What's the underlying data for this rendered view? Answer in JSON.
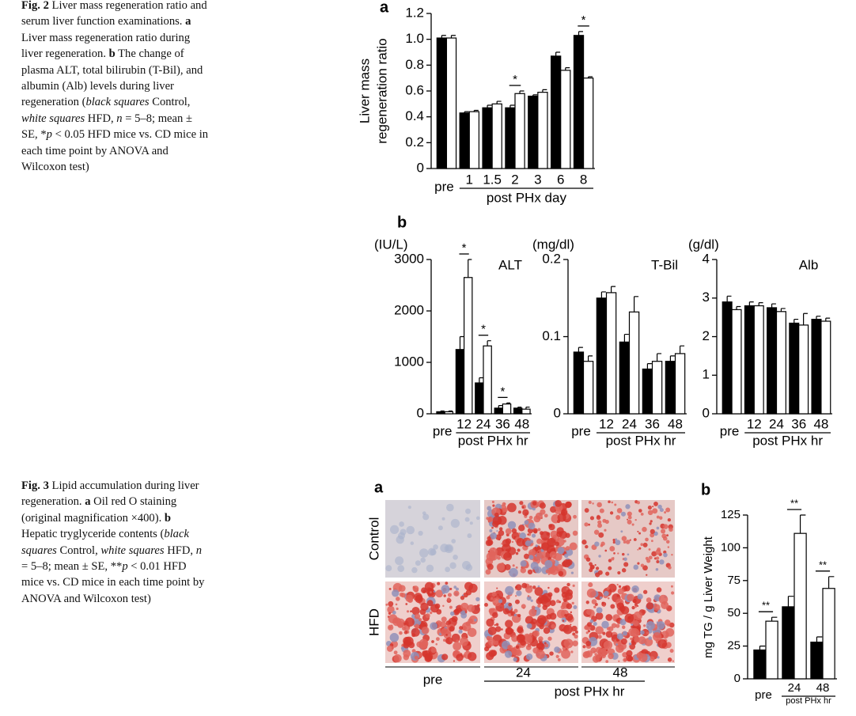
{
  "captions": [
    {
      "runs": [
        "Fig. 2",
        " Liver mass regeneration ratio and serum liver function examinations. ",
        "a",
        " Liver mass regeneration ratio during liver regeneration. ",
        "b",
        " The change of plasma ALT, total bilirubin (T-Bil), and albumin (Alb) levels during liver regeneration (",
        "black squares",
        " Control, ",
        "white squares",
        " HFD, ",
        "n",
        " = 5–8; mean ± SE, *",
        "p",
        " < 0.05 HFD mice vs. CD mice in each time point by ANOVA and Wilcoxon test)"
      ]
    },
    {
      "runs": [
        "Fig. 3",
        " Lipid accumulation during liver regeneration. ",
        "a",
        " Oil red O staining (original magnification ×400). ",
        "b",
        " Hepatic tryglyceride contents (",
        "black squares",
        " Control, ",
        "white squares",
        " HFD, ",
        "n",
        " = 5–8; mean ± SE, **",
        "p",
        " < 0.01 HFD mice vs. CD mice in each time point by ANOVA and Wilcoxon test)"
      ]
    }
  ],
  "chart_data": [
    {
      "type": "bar",
      "panel": "a",
      "y_label": [
        "Liver mass",
        "regeneration ratio"
      ],
      "x_label": "post PHx day",
      "categories": [
        "pre",
        "1",
        "1.5",
        "2",
        "3",
        "6",
        "8"
      ],
      "series": [
        {
          "color": "#000000",
          "values": [
            1.01,
            0.43,
            0.47,
            0.47,
            0.56,
            0.87,
            1.03
          ],
          "errors": [
            0.02,
            0.01,
            0.02,
            0.02,
            0.01,
            0.03,
            0.03
          ]
        },
        {
          "color": "#ffffff",
          "values": [
            1.01,
            0.44,
            0.5,
            0.58,
            0.59,
            0.76,
            0.7
          ],
          "errors": [
            0.02,
            0.01,
            0.02,
            0.02,
            0.02,
            0.02,
            0.01
          ]
        }
      ],
      "significance": [
        null,
        null,
        null,
        "*",
        null,
        null,
        "*"
      ],
      "ylim": [
        0,
        1.2
      ],
      "yticks": [
        0,
        0.2,
        0.4,
        0.6,
        0.8,
        {
          "value": 1,
          "label": "1.0"
        },
        1.2
      ]
    },
    {
      "type": "bar",
      "panel": "b",
      "unit": "(IU/L)",
      "title": "ALT",
      "x_label": "post PHx hr",
      "categories": [
        "pre",
        "12",
        "24",
        "36",
        "48"
      ],
      "series": [
        {
          "color": "#000000",
          "values": [
            40,
            1250,
            600,
            110,
            110
          ],
          "errors": [
            15,
            250,
            100,
            50,
            20
          ]
        },
        {
          "color": "#ffffff",
          "values": [
            40,
            2650,
            1320,
            190,
            90
          ],
          "errors": [
            15,
            350,
            100,
            20,
            40
          ]
        }
      ],
      "significance": [
        null,
        "*",
        "*",
        "*",
        null
      ],
      "ylim": [
        0,
        3000
      ],
      "yticks": [
        0,
        1000,
        2000,
        3000
      ]
    },
    {
      "type": "bar",
      "unit": "(mg/dl)",
      "title": "T-Bil",
      "x_label": "post PHx hr",
      "categories": [
        "pre",
        "12",
        "24",
        "36",
        "48"
      ],
      "series": [
        {
          "color": "#000000",
          "values": [
            0.08,
            0.15,
            0.093,
            0.058,
            0.068
          ],
          "errors": [
            0.006,
            0.008,
            0.01,
            0.007,
            0.007
          ]
        },
        {
          "color": "#ffffff",
          "values": [
            0.068,
            0.157,
            0.132,
            0.068,
            0.078
          ],
          "errors": [
            0.007,
            0.008,
            0.02,
            0.01,
            0.01
          ]
        }
      ],
      "significance": [
        null,
        null,
        null,
        null,
        null
      ],
      "ylim": [
        0,
        0.2
      ],
      "yticks": [
        0,
        0.1,
        0.2
      ]
    },
    {
      "type": "bar",
      "unit": "(g/dl)",
      "title": "Alb",
      "x_label": "post PHx hr",
      "categories": [
        "pre",
        "12",
        "24",
        "36",
        "48"
      ],
      "series": [
        {
          "color": "#000000",
          "values": [
            2.9,
            2.8,
            2.75,
            2.35,
            2.45
          ],
          "errors": [
            0.15,
            0.1,
            0.1,
            0.1,
            0.08
          ]
        },
        {
          "color": "#ffffff",
          "values": [
            2.7,
            2.8,
            2.65,
            2.3,
            2.4
          ],
          "errors": [
            0.08,
            0.08,
            0.08,
            0.3,
            0.08
          ]
        }
      ],
      "significance": [
        null,
        null,
        null,
        null,
        null
      ],
      "ylim": [
        0,
        4
      ],
      "yticks": [
        0,
        1,
        2,
        3,
        4
      ]
    },
    {
      "type": "bar",
      "panel": "b",
      "y_label": [
        "mg TG / g Liver Weight"
      ],
      "x_label": "post PHx hr",
      "categories": [
        "pre",
        "24",
        "48"
      ],
      "series": [
        {
          "color": "#000000",
          "values": [
            22,
            55,
            28
          ],
          "errors": [
            3,
            8,
            4
          ]
        },
        {
          "color": "#ffffff",
          "values": [
            44,
            111,
            69
          ],
          "errors": [
            3,
            14,
            9
          ]
        }
      ],
      "significance": [
        "**",
        "**",
        "**"
      ],
      "ylim": [
        0,
        125
      ],
      "yticks": [
        0,
        25,
        50,
        75,
        100,
        125
      ]
    }
  ],
  "staining": {
    "panel": "a",
    "rows": [
      "Control",
      "HFD"
    ],
    "columns": [
      "pre",
      "24",
      "48"
    ],
    "x_label": "post PHx hr"
  }
}
